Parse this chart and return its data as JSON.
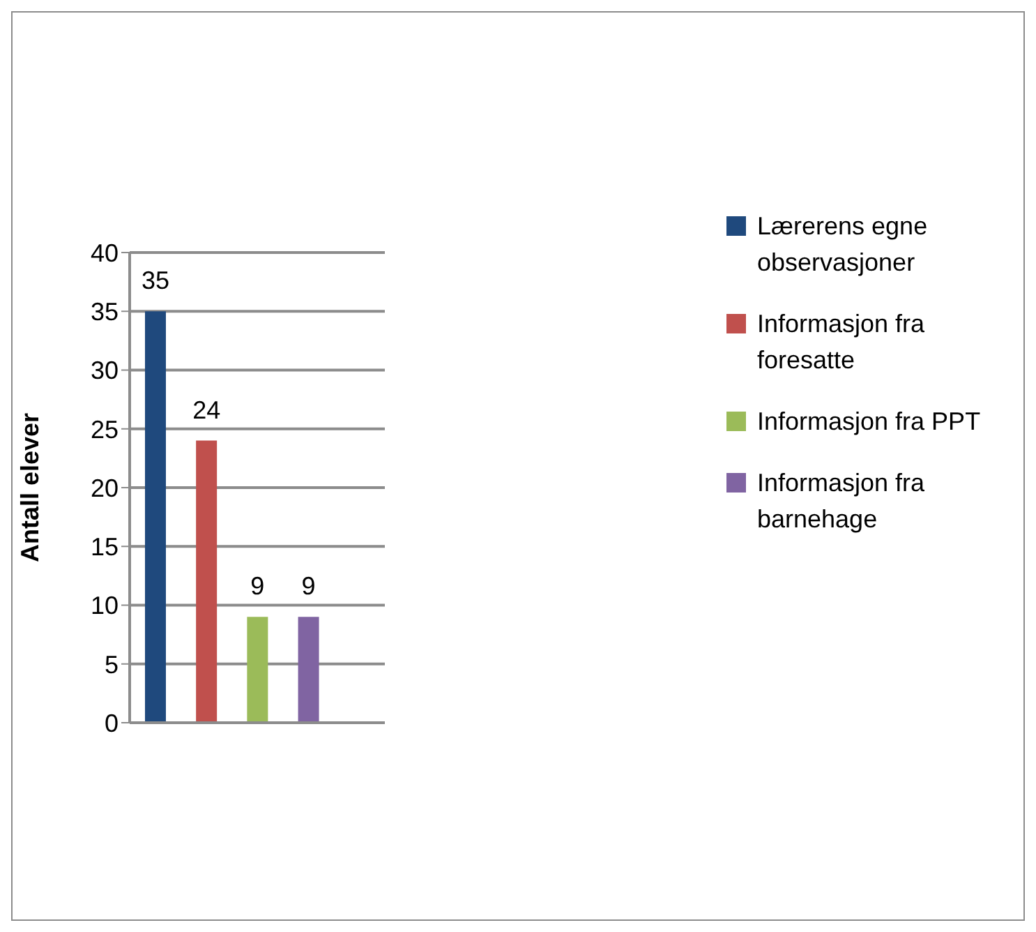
{
  "chart_data": {
    "type": "bar",
    "ylabel": "Antall elever",
    "categories": [
      null,
      null,
      null,
      null,
      null
    ],
    "stacked": true,
    "series": [
      {
        "name": "Lærerens egne observasjoner",
        "color": "#1f497d",
        "values": [
          35,
          null,
          null,
          null,
          null
        ]
      },
      {
        "name": "Informasjon fra foresatte",
        "color": "#c0504d",
        "values": [
          null,
          24,
          null,
          null,
          null
        ]
      },
      {
        "name": "Informasjon fra PPT",
        "color": "#9bbb59",
        "values": [
          null,
          null,
          9,
          null,
          null
        ]
      },
      {
        "name": "Informasjon fra barnehage",
        "color": "#8064a2",
        "values": [
          null,
          null,
          null,
          9,
          null
        ]
      }
    ],
    "ylim": [
      0,
      40
    ],
    "yticks": [
      0,
      5,
      10,
      15,
      20,
      25,
      30,
      35,
      40
    ],
    "grid": "y",
    "legend": "right",
    "data_labels": true
  }
}
